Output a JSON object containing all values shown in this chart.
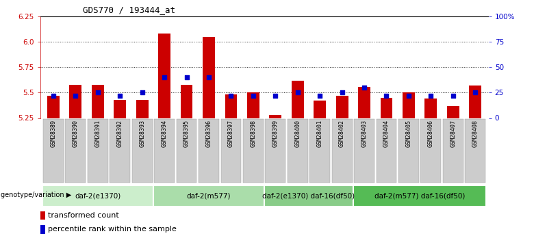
{
  "title": "GDS770 / 193444_at",
  "samples": [
    "GSM28389",
    "GSM28390",
    "GSM28391",
    "GSM28392",
    "GSM28393",
    "GSM28394",
    "GSM28395",
    "GSM28396",
    "GSM28397",
    "GSM28398",
    "GSM28399",
    "GSM28400",
    "GSM28401",
    "GSM28402",
    "GSM28403",
    "GSM28404",
    "GSM28405",
    "GSM28406",
    "GSM28407",
    "GSM28408"
  ],
  "transformed_count": [
    5.47,
    5.58,
    5.58,
    5.43,
    5.43,
    6.08,
    5.58,
    6.05,
    5.48,
    5.5,
    5.28,
    5.62,
    5.42,
    5.47,
    5.56,
    5.45,
    5.5,
    5.44,
    5.37,
    5.57
  ],
  "percentile_rank": [
    22,
    22,
    25,
    22,
    25,
    40,
    40,
    40,
    22,
    22,
    22,
    25,
    22,
    25,
    30,
    22,
    22,
    22,
    22,
    25
  ],
  "ylim": [
    5.25,
    6.25
  ],
  "yticks_left": [
    5.25,
    5.5,
    5.75,
    6.0,
    6.25
  ],
  "yticks_right": [
    0,
    25,
    50,
    75,
    100
  ],
  "bar_color": "#cc0000",
  "dot_color": "#0000cc",
  "groups": [
    {
      "label": "daf-2(e1370)",
      "start": 0,
      "end": 5,
      "color": "#cceecc"
    },
    {
      "label": "daf-2(m577)",
      "start": 5,
      "end": 10,
      "color": "#aaddaa"
    },
    {
      "label": "daf-2(e1370) daf-16(df50)",
      "start": 10,
      "end": 14,
      "color": "#88cc88"
    },
    {
      "label": "daf-2(m577) daf-16(df50)",
      "start": 14,
      "end": 20,
      "color": "#55bb55"
    }
  ],
  "genotype_label": "genotype/variation",
  "legend_items": [
    {
      "label": "transformed count",
      "color": "#cc0000"
    },
    {
      "label": "percentile rank within the sample",
      "color": "#0000cc"
    }
  ],
  "dotted_line_color": "#333333",
  "bg_color": "#ffffff",
  "tick_label_color_left": "#cc0000",
  "tick_label_color_right": "#0000cc",
  "base_value": 5.25,
  "sample_bg_color": "#cccccc",
  "sample_bg_border": "#999999"
}
